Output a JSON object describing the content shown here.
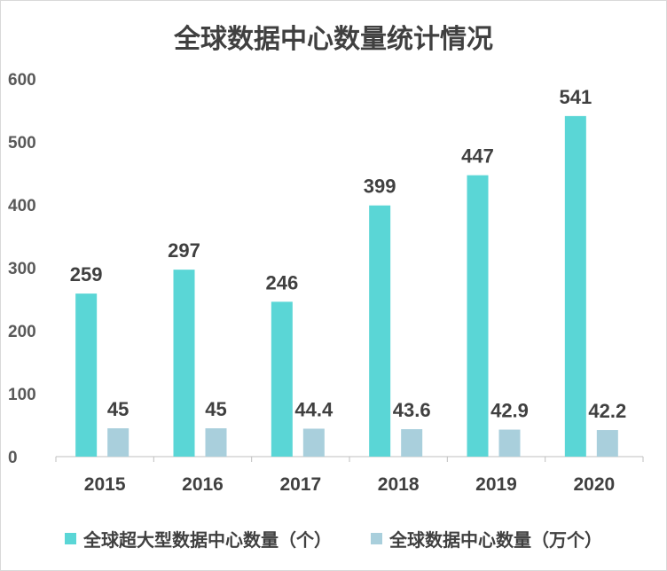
{
  "chart_data": {
    "type": "bar",
    "title": "全球数据中心数量统计情况",
    "categories": [
      "2015",
      "2016",
      "2017",
      "2018",
      "2019",
      "2020"
    ],
    "series": [
      {
        "name": "全球超大型数据中心数量（个）",
        "values": [
          259,
          297,
          246,
          399,
          447,
          541
        ],
        "color": "#5ad6d6"
      },
      {
        "name": "全球数据中心数量（万个）",
        "values": [
          45,
          45,
          44.4,
          43.6,
          42.9,
          42.2
        ],
        "color": "#a9cfdc"
      }
    ],
    "ylim": [
      0,
      600
    ],
    "yticks": [
      0,
      100,
      200,
      300,
      400,
      500,
      600
    ],
    "grid": false,
    "legend_position": "bottom"
  }
}
